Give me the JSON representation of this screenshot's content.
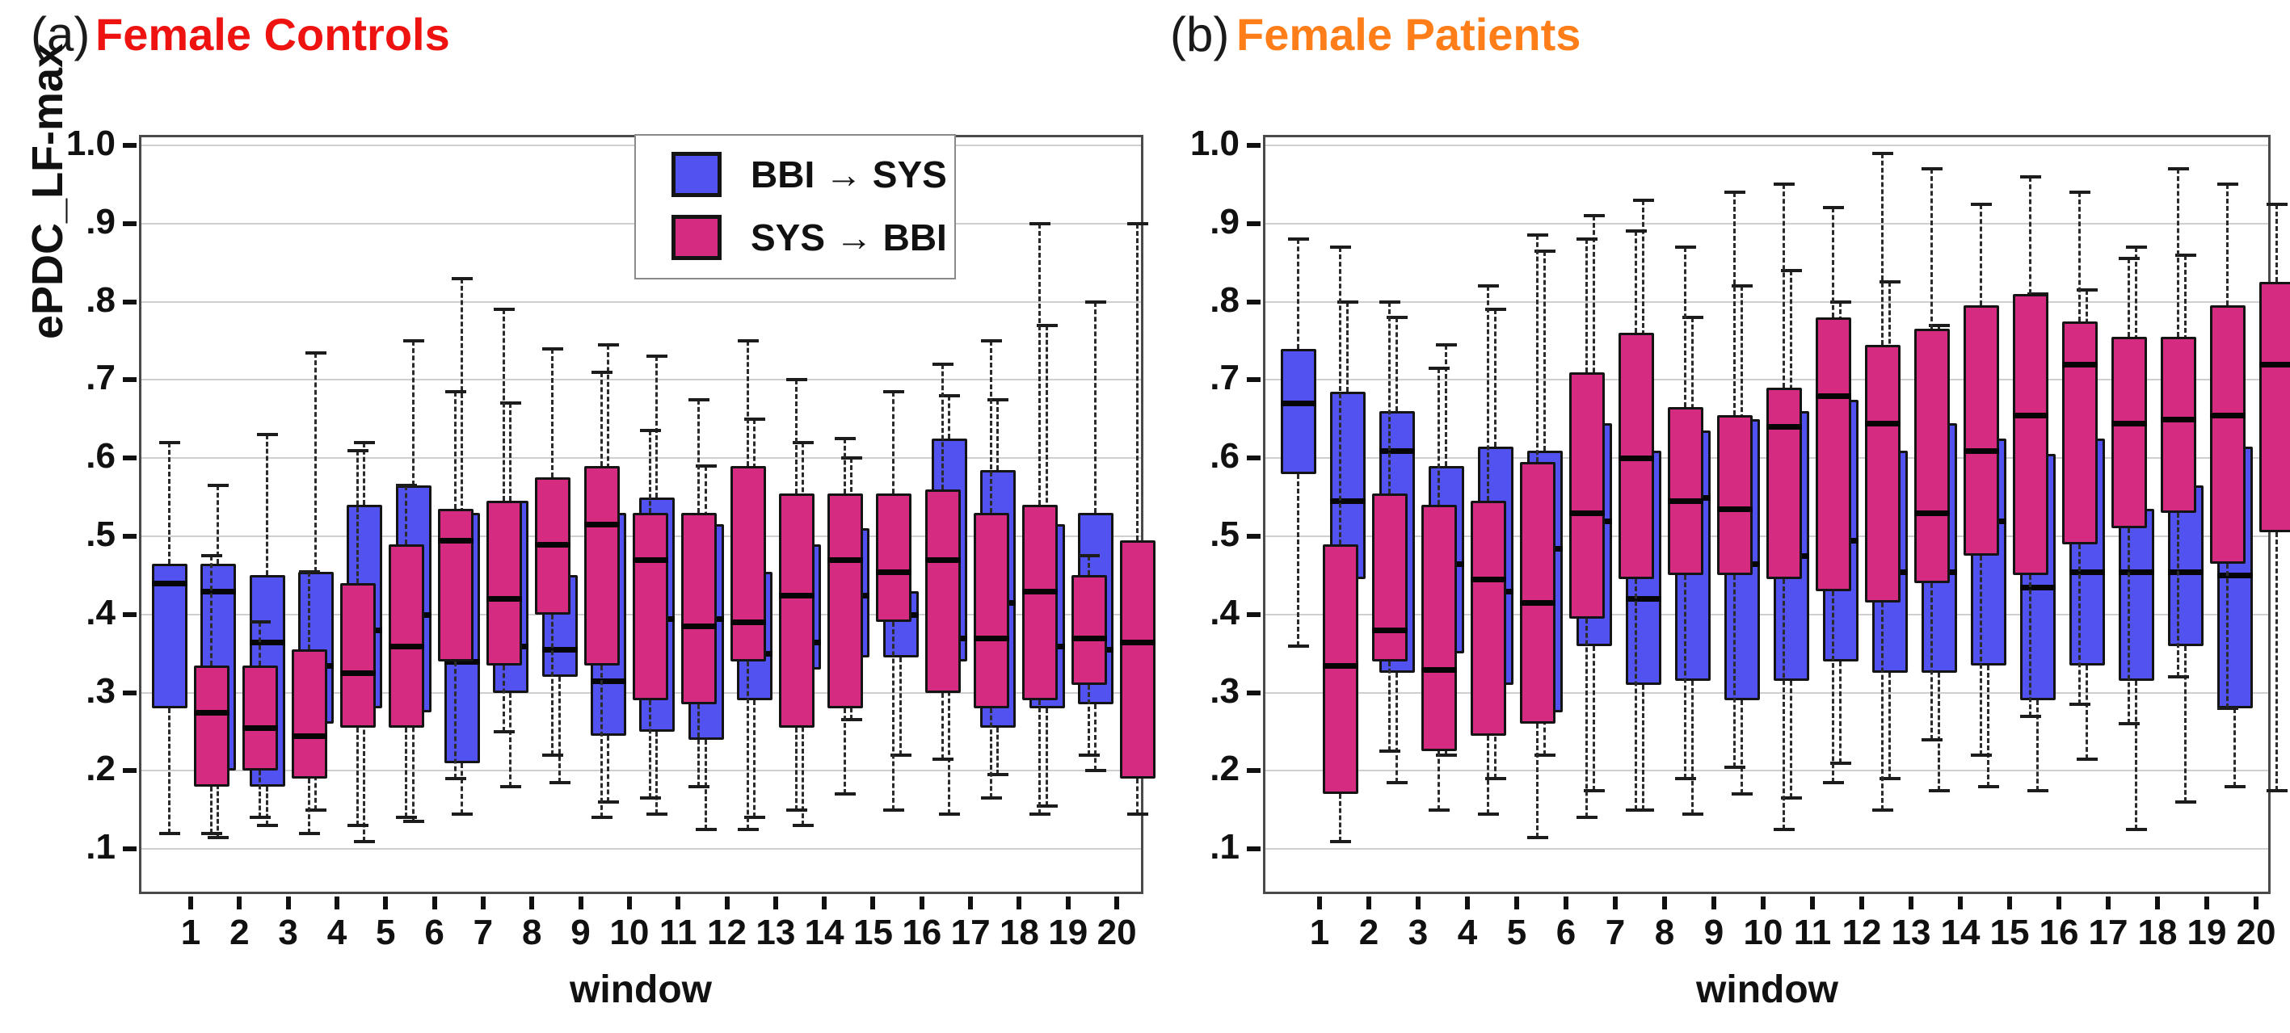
{
  "figure": {
    "panels": [
      {
        "id": "a",
        "index_label": "(a)",
        "title": "Female Controls",
        "title_color": "#ee1310",
        "xlabel": "window",
        "ylabel": "ePDC_LF-max",
        "has_ylabel": true,
        "has_legend": true
      },
      {
        "id": "b",
        "index_label": "(b)",
        "title": "Female Patients",
        "title_color": "#ff7e1a",
        "xlabel": "window",
        "ylabel": "",
        "has_ylabel": false,
        "has_legend": false
      }
    ],
    "legend": {
      "items": [
        {
          "label": "BBI → SYS",
          "color": "#5252f0"
        },
        {
          "label": "SYS → BBI",
          "color": "#d52b80"
        }
      ]
    },
    "colors": {
      "blue": "#5252f0",
      "pink": "#d52b80",
      "title_a": "#ee1310",
      "title_b": "#ff7e1a"
    }
  },
  "chart_data": [
    {
      "type": "boxplot",
      "panel": "a",
      "title": "Female Controls",
      "xlabel": "window",
      "ylabel": "ePDC_LF-max",
      "y_ticks": [
        "1.0",
        ".9",
        ".8",
        ".7",
        ".6",
        ".5",
        ".4",
        ".3",
        ".2",
        ".1"
      ],
      "ylim": [
        0.04,
        1.02
      ],
      "grid": true,
      "legend_position": "top-center",
      "categories": [
        "1",
        "2",
        "3",
        "4",
        "5",
        "6",
        "7",
        "8",
        "9",
        "10",
        "11",
        "12",
        "13",
        "14",
        "15",
        "16",
        "17",
        "18",
        "19",
        "20"
      ],
      "box_format": [
        "whisker_low",
        "q1",
        "median",
        "q3",
        "whisker_high"
      ],
      "series": [
        {
          "name": "BBI → SYS",
          "color": "#5252f0",
          "boxes": [
            [
              0.12,
              0.28,
              0.44,
              0.465,
              0.62
            ],
            [
              0.115,
              0.2,
              0.43,
              0.465,
              0.565
            ],
            [
              0.13,
              0.18,
              0.365,
              0.45,
              0.63
            ],
            [
              0.15,
              0.26,
              0.335,
              0.455,
              0.735
            ],
            [
              0.11,
              0.28,
              0.38,
              0.54,
              0.62
            ],
            [
              0.135,
              0.275,
              0.4,
              0.565,
              0.75
            ],
            [
              0.145,
              0.21,
              0.34,
              0.53,
              0.83
            ],
            [
              0.18,
              0.3,
              0.36,
              0.545,
              0.67
            ],
            [
              0.185,
              0.32,
              0.355,
              0.45,
              0.55
            ],
            [
              0.16,
              0.245,
              0.315,
              0.53,
              0.745
            ],
            [
              0.145,
              0.25,
              0.395,
              0.55,
              0.73
            ],
            [
              0.125,
              0.24,
              0.395,
              0.515,
              0.59
            ],
            [
              0.14,
              0.29,
              0.35,
              0.455,
              0.65
            ],
            [
              0.13,
              0.33,
              0.365,
              0.49,
              0.62
            ],
            [
              0.265,
              0.345,
              0.425,
              0.51,
              0.6
            ],
            [
              0.22,
              0.345,
              0.4,
              0.43,
              0.49
            ],
            [
              0.145,
              0.34,
              0.37,
              0.625,
              0.68
            ],
            [
              0.195,
              0.255,
              0.415,
              0.585,
              0.675
            ],
            [
              0.155,
              0.28,
              0.36,
              0.515,
              0.77
            ],
            [
              0.2,
              0.285,
              0.355,
              0.53,
              0.8
            ]
          ]
        },
        {
          "name": "SYS → BBI",
          "color": "#d52b80",
          "boxes": [
            [
              0.12,
              0.18,
              0.275,
              0.335,
              0.475
            ],
            [
              0.14,
              0.2,
              0.255,
              0.335,
              0.39
            ],
            [
              0.12,
              0.19,
              0.245,
              0.355,
              0.455
            ],
            [
              0.13,
              0.255,
              0.325,
              0.44,
              0.61
            ],
            [
              0.14,
              0.255,
              0.36,
              0.49,
              0.565
            ],
            [
              0.19,
              0.34,
              0.495,
              0.535,
              0.685
            ],
            [
              0.25,
              0.335,
              0.42,
              0.545,
              0.79
            ],
            [
              0.22,
              0.4,
              0.49,
              0.575,
              0.74
            ],
            [
              0.14,
              0.335,
              0.515,
              0.59,
              0.71
            ],
            [
              0.165,
              0.29,
              0.47,
              0.53,
              0.635
            ],
            [
              0.18,
              0.285,
              0.385,
              0.53,
              0.675
            ],
            [
              0.125,
              0.34,
              0.39,
              0.59,
              0.75
            ],
            [
              0.15,
              0.255,
              0.425,
              0.555,
              0.7
            ],
            [
              0.17,
              0.28,
              0.47,
              0.555,
              0.625
            ],
            [
              0.15,
              0.39,
              0.455,
              0.555,
              0.685
            ],
            [
              0.215,
              0.3,
              0.47,
              0.56,
              0.72
            ],
            [
              0.165,
              0.28,
              0.37,
              0.53,
              0.75
            ],
            [
              0.145,
              0.29,
              0.43,
              0.54,
              0.9
            ],
            [
              0.22,
              0.31,
              0.37,
              0.45,
              0.475
            ],
            [
              0.145,
              0.19,
              0.365,
              0.495,
              0.9
            ]
          ]
        }
      ]
    },
    {
      "type": "boxplot",
      "panel": "b",
      "title": "Female Patients",
      "xlabel": "window",
      "ylabel": "",
      "y_ticks": [
        "1.0",
        ".9",
        ".8",
        ".7",
        ".6",
        ".5",
        ".4",
        ".3",
        ".2",
        ".1"
      ],
      "ylim": [
        0.04,
        1.02
      ],
      "grid": true,
      "categories": [
        "1",
        "2",
        "3",
        "4",
        "5",
        "6",
        "7",
        "8",
        "9",
        "10",
        "11",
        "12",
        "13",
        "14",
        "15",
        "16",
        "17",
        "18",
        "19",
        "20"
      ],
      "box_format": [
        "whisker_low",
        "q1",
        "median",
        "q3",
        "whisker_high"
      ],
      "series": [
        {
          "name": "BBI → SYS",
          "color": "#5252f0",
          "boxes": [
            [
              0.36,
              0.58,
              0.67,
              0.74,
              0.88
            ],
            [
              0.29,
              0.445,
              0.545,
              0.685,
              0.8
            ],
            [
              0.185,
              0.325,
              0.61,
              0.66,
              0.78
            ],
            [
              0.22,
              0.35,
              0.465,
              0.59,
              0.745
            ],
            [
              0.19,
              0.31,
              0.43,
              0.615,
              0.79
            ],
            [
              0.22,
              0.275,
              0.485,
              0.61,
              0.865
            ],
            [
              0.175,
              0.36,
              0.52,
              0.645,
              0.91
            ],
            [
              0.15,
              0.31,
              0.42,
              0.61,
              0.93
            ],
            [
              0.145,
              0.315,
              0.55,
              0.635,
              0.78
            ],
            [
              0.17,
              0.29,
              0.465,
              0.65,
              0.82
            ],
            [
              0.165,
              0.315,
              0.475,
              0.66,
              0.84
            ],
            [
              0.21,
              0.34,
              0.495,
              0.675,
              0.8
            ],
            [
              0.19,
              0.325,
              0.455,
              0.61,
              0.825
            ],
            [
              0.175,
              0.325,
              0.455,
              0.645,
              0.77
            ],
            [
              0.18,
              0.335,
              0.52,
              0.625,
              0.695
            ],
            [
              0.175,
              0.29,
              0.435,
              0.605,
              0.81
            ],
            [
              0.215,
              0.335,
              0.455,
              0.625,
              0.815
            ],
            [
              0.125,
              0.315,
              0.455,
              0.535,
              0.87
            ],
            [
              0.16,
              0.36,
              0.455,
              0.565,
              0.86
            ],
            [
              0.18,
              0.28,
              0.45,
              0.615,
              0.785
            ]
          ]
        },
        {
          "name": "SYS → BBI",
          "color": "#d52b80",
          "boxes": [
            [
              0.11,
              0.17,
              0.335,
              0.49,
              0.87
            ],
            [
              0.225,
              0.34,
              0.38,
              0.555,
              0.8
            ],
            [
              0.15,
              0.225,
              0.33,
              0.54,
              0.715
            ],
            [
              0.145,
              0.245,
              0.445,
              0.545,
              0.82
            ],
            [
              0.115,
              0.26,
              0.415,
              0.595,
              0.885
            ],
            [
              0.14,
              0.395,
              0.53,
              0.71,
              0.88
            ],
            [
              0.15,
              0.445,
              0.6,
              0.76,
              0.89
            ],
            [
              0.19,
              0.45,
              0.545,
              0.665,
              0.87
            ],
            [
              0.205,
              0.45,
              0.535,
              0.655,
              0.94
            ],
            [
              0.125,
              0.445,
              0.64,
              0.69,
              0.95
            ],
            [
              0.185,
              0.43,
              0.68,
              0.78,
              0.92
            ],
            [
              0.15,
              0.415,
              0.645,
              0.745,
              0.99
            ],
            [
              0.24,
              0.44,
              0.53,
              0.765,
              0.97
            ],
            [
              0.22,
              0.475,
              0.61,
              0.795,
              0.925
            ],
            [
              0.27,
              0.45,
              0.655,
              0.81,
              0.96
            ],
            [
              0.285,
              0.49,
              0.72,
              0.775,
              0.94
            ],
            [
              0.26,
              0.51,
              0.645,
              0.755,
              0.855
            ],
            [
              0.32,
              0.53,
              0.65,
              0.755,
              0.97
            ],
            [
              0.28,
              0.465,
              0.655,
              0.795,
              0.95
            ],
            [
              0.175,
              0.505,
              0.72,
              0.825,
              0.925
            ]
          ]
        }
      ]
    }
  ]
}
